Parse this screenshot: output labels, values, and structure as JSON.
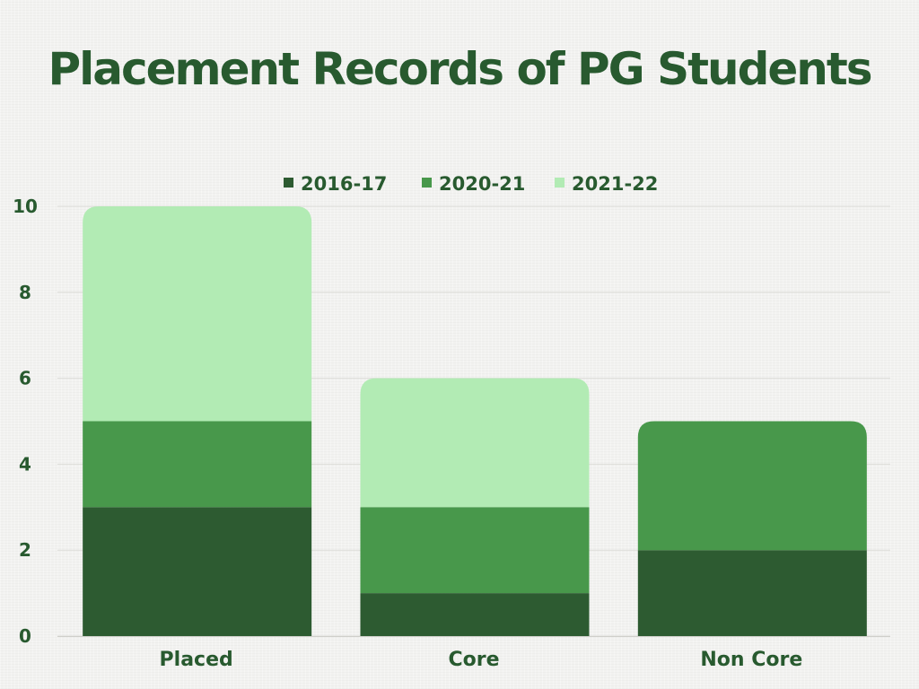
{
  "chart_data": {
    "type": "bar",
    "stacked": true,
    "title": "Placement Records of PG Students",
    "xlabel": "",
    "ylabel": "",
    "categories": [
      "Placed",
      "Core",
      "Non Core"
    ],
    "series": [
      {
        "name": "2016-17",
        "values": [
          3,
          1,
          2
        ],
        "color": "#2d5b31"
      },
      {
        "name": "2020-21",
        "values": [
          2,
          2,
          3
        ],
        "color": "#48984b"
      },
      {
        "name": "2021-22",
        "values": [
          5,
          3,
          0
        ],
        "color": "#b2ebb4"
      }
    ],
    "ylim": [
      0,
      10
    ],
    "yticks": [
      "0",
      "2",
      "4",
      "6",
      "8",
      "10"
    ],
    "grid": true,
    "legend_position": "top-center"
  }
}
